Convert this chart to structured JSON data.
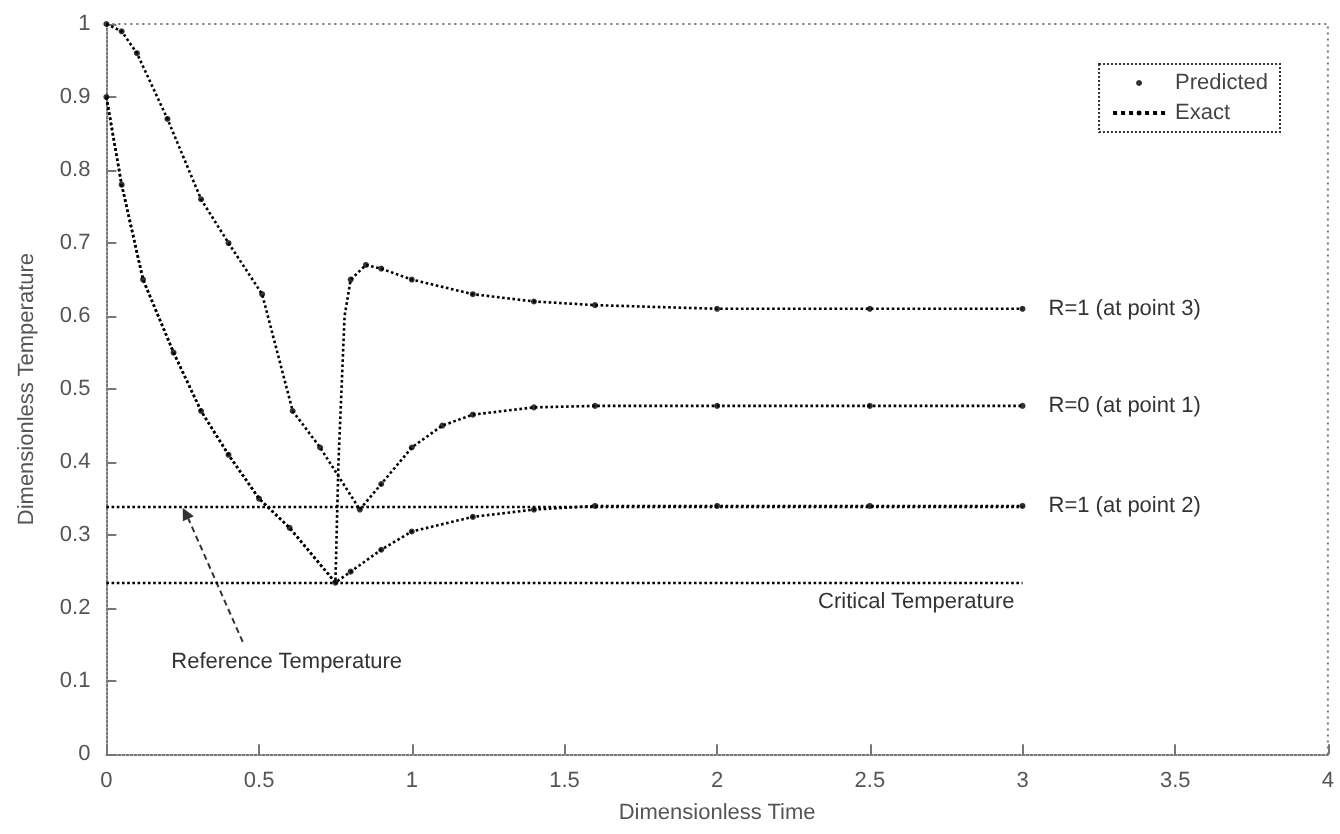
{
  "chart_data": {
    "type": "line",
    "xlabel": "Dimensionless Time",
    "ylabel": "Dimensionless Temperature",
    "xlim": [
      0,
      4
    ],
    "xticks": [
      0,
      0.5,
      1,
      1.5,
      2,
      2.5,
      3,
      3.5,
      4
    ],
    "ylim": [
      0,
      1
    ],
    "yticks": [
      0,
      0.1,
      0.2,
      0.3,
      0.4,
      0.5,
      0.6,
      0.7,
      0.8,
      0.9,
      1
    ],
    "grid": false,
    "legend": "top right",
    "series": [
      {
        "name": "Predicted",
        "type": "scatter",
        "color": "#000000",
        "marker": "circle",
        "x": [
          0,
          0.05,
          0.1,
          0.2,
          0.31,
          0.4,
          0.51,
          0.61,
          0.7,
          0.83,
          0.9,
          1.0,
          1.1,
          1.2,
          1.4,
          1.6,
          2,
          2.5,
          3
        ],
        "values": [
          1,
          0.99,
          0.96,
          0.87,
          0.76,
          0.7,
          0.63,
          0.47,
          0.42,
          0.335,
          0.37,
          0.42,
          0.45,
          0.465,
          0.475,
          0.477,
          0.477,
          0.477,
          0.477
        ]
      },
      {
        "name": "Exact",
        "color": "#000000",
        "line_style": "dotted",
        "marker": "none",
        "x": [
          0,
          0.05,
          0.1,
          0.2,
          0.31,
          0.4,
          0.51,
          0.61,
          0.7,
          0.83,
          0.9,
          1.0,
          1.1,
          1.2,
          1.4,
          1.6,
          2,
          2.5,
          3
        ],
        "values": [
          1,
          0.99,
          0.96,
          0.87,
          0.76,
          0.7,
          0.63,
          0.47,
          0.42,
          0.335,
          0.37,
          0.42,
          0.45,
          0.465,
          0.475,
          0.477,
          0.477,
          0.477,
          0.477
        ]
      },
      {
        "color": "#000000",
        "line_style": "dotted",
        "marker": "none",
        "x": [
          0,
          0.05,
          0.12,
          0.22,
          0.31,
          0.4,
          0.5,
          0.6,
          0.75,
          0.8,
          0.9,
          1.0,
          1.2,
          1.4,
          1.6,
          2,
          2.5,
          3
        ],
        "values": [
          0.9,
          0.78,
          0.65,
          0.55,
          0.47,
          0.41,
          0.35,
          0.31,
          0.235,
          0.25,
          0.28,
          0.305,
          0.325,
          0.335,
          0.34,
          0.34,
          0.34,
          0.34
        ]
      },
      {
        "color": "#000000",
        "line_style": "dotted",
        "marker": "none",
        "x": [
          0,
          0.05,
          0.12,
          0.22,
          0.31,
          0.4,
          0.5,
          0.6,
          0.75,
          0.76,
          0.78,
          0.8,
          0.85,
          0.9,
          1.0,
          1.2,
          1.4,
          1.6,
          2,
          2.5,
          3
        ],
        "values": [
          0.9,
          0.78,
          0.65,
          0.55,
          0.47,
          0.41,
          0.35,
          0.31,
          0.235,
          0.4,
          0.6,
          0.65,
          0.67,
          0.665,
          0.65,
          0.63,
          0.62,
          0.615,
          0.61,
          0.61,
          0.61
        ]
      },
      {
        "type": "scatter",
        "color": "#000000",
        "marker": "circle",
        "x": [
          0,
          0.05,
          0.12,
          0.22,
          0.31,
          0.4,
          0.5,
          0.6,
          0.75,
          0.8,
          0.9,
          1.0,
          1.2,
          1.4,
          1.6,
          2,
          2.5,
          3
        ],
        "values": [
          0.9,
          0.78,
          0.65,
          0.55,
          0.47,
          0.41,
          0.35,
          0.31,
          0.235,
          0.25,
          0.28,
          0.305,
          0.325,
          0.335,
          0.34,
          0.34,
          0.34,
          0.34
        ]
      },
      {
        "type": "scatter",
        "color": "#000000",
        "marker": "circle",
        "x": [
          0.8,
          0.85,
          0.9,
          1.0,
          1.2,
          1.4,
          1.6,
          2,
          2.5,
          3
        ],
        "values": [
          0.65,
          0.67,
          0.665,
          0.65,
          0.63,
          0.62,
          0.615,
          0.61,
          0.61,
          0.61
        ]
      }
    ],
    "ref_lines": [
      {
        "axis": "y",
        "value": 0.34,
        "line_style": "dotted"
      },
      {
        "axis": "y",
        "value": 0.235,
        "label": "Critical Temperature",
        "line_style": "dotted"
      }
    ],
    "annotations": [
      "R=1 (at point 3)",
      "R=0 (at point 1)",
      "R=1 (at point 2)",
      {
        "text": "Reference Temperature",
        "x": 0.25,
        "y": 0.34
      }
    ]
  }
}
